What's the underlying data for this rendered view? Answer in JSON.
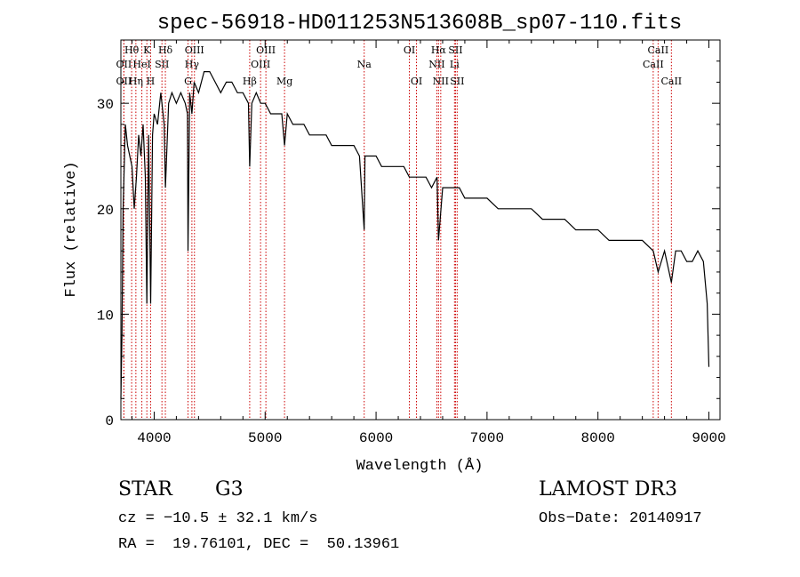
{
  "chart_data": {
    "type": "line",
    "title": "spec-56918-HD011253N513608B_sp07-110.fits",
    "xlabel": "Wavelength (Å)",
    "ylabel": "Flux (relative)",
    "xlim": [
      3700,
      9100
    ],
    "ylim": [
      0,
      36
    ],
    "xticks": [
      4000,
      5000,
      6000,
      7000,
      8000,
      9000
    ],
    "yticks": [
      0,
      10,
      20,
      30
    ],
    "grid": false,
    "series": [
      {
        "name": "flux",
        "x": [
          3700,
          3710,
          3720,
          3740,
          3760,
          3780,
          3800,
          3820,
          3840,
          3860,
          3880,
          3900,
          3920,
          3934,
          3950,
          3968,
          3985,
          4000,
          4030,
          4060,
          4090,
          4101,
          4130,
          4160,
          4200,
          4240,
          4280,
          4300,
          4305,
          4320,
          4340,
          4360,
          4400,
          4450,
          4500,
          4550,
          4600,
          4650,
          4700,
          4750,
          4800,
          4850,
          4861,
          4880,
          4920,
          4960,
          5000,
          5050,
          5100,
          5150,
          5175,
          5200,
          5250,
          5300,
          5350,
          5400,
          5450,
          5500,
          5550,
          5600,
          5650,
          5700,
          5750,
          5800,
          5850,
          5893,
          5900,
          5950,
          6000,
          6050,
          6100,
          6150,
          6200,
          6250,
          6300,
          6350,
          6400,
          6450,
          6500,
          6550,
          6563,
          6600,
          6650,
          6700,
          6750,
          6800,
          6850,
          6900,
          6950,
          7000,
          7100,
          7200,
          7300,
          7400,
          7500,
          7600,
          7700,
          7800,
          7900,
          8000,
          8100,
          8200,
          8300,
          8400,
          8498,
          8542,
          8600,
          8662,
          8700,
          8750,
          8800,
          8850,
          8900,
          8950,
          8985,
          9000
        ],
        "values": [
          2,
          8,
          20,
          28,
          26,
          25,
          24,
          20,
          23,
          27,
          25,
          28,
          23,
          11,
          27,
          11,
          27,
          29,
          28,
          31,
          28,
          22,
          30,
          31,
          30,
          31,
          30,
          29,
          16,
          31,
          29,
          32,
          31,
          33,
          33,
          32,
          31,
          32,
          32,
          31,
          31,
          30,
          24,
          30,
          31,
          30,
          30,
          29,
          29,
          29,
          26,
          29,
          28,
          28,
          28,
          27,
          27,
          27,
          27,
          26,
          26,
          26,
          26,
          26,
          25,
          18,
          25,
          25,
          25,
          24,
          24,
          24,
          24,
          24,
          23,
          23,
          23,
          23,
          22,
          23,
          17,
          22,
          22,
          22,
          22,
          21,
          21,
          21,
          21,
          21,
          20,
          20,
          20,
          20,
          19,
          19,
          19,
          18,
          18,
          18,
          17,
          17,
          17,
          17,
          16,
          14,
          16,
          13,
          16,
          16,
          15,
          15,
          16,
          15,
          11,
          5
        ]
      }
    ],
    "lines": [
      {
        "label": "OII",
        "x": 3727,
        "row": 2,
        "dash": false
      },
      {
        "label": "Hθ",
        "x": 3797,
        "row": 1,
        "dash": false
      },
      {
        "label": "OII",
        "x": 3727,
        "row": 3,
        "dash": false
      },
      {
        "label": "Hη",
        "x": 3835,
        "row": 3,
        "dash": false
      },
      {
        "label": "HeI",
        "x": 3889,
        "row": 2,
        "dash": false
      },
      {
        "label": "K",
        "x": 3934,
        "row": 1,
        "dash": false
      },
      {
        "label": "H",
        "x": 3968,
        "row": 3,
        "dash": false
      },
      {
        "label": "SII",
        "x": 4070,
        "row": 2,
        "dash": false
      },
      {
        "label": "Hδ",
        "x": 4101,
        "row": 1,
        "dash": false
      },
      {
        "label": "G",
        "x": 4305,
        "row": 3,
        "dash": false
      },
      {
        "label": "Hγ",
        "x": 4340,
        "row": 2,
        "dash": false
      },
      {
        "label": "OIII",
        "x": 4363,
        "row": 1,
        "dash": false
      },
      {
        "label": "Hβ",
        "x": 4861,
        "row": 3,
        "dash": false
      },
      {
        "label": "OIII",
        "x": 4959,
        "row": 2,
        "dash": false
      },
      {
        "label": "OIII",
        "x": 5007,
        "row": 1,
        "dash": false
      },
      {
        "label": "Mg",
        "x": 5175,
        "row": 3,
        "dash": false
      },
      {
        "label": "Na",
        "x": 5893,
        "row": 2,
        "dash": false
      },
      {
        "label": "OI",
        "x": 6300,
        "row": 1,
        "dash": false
      },
      {
        "label": "OI",
        "x": 6364,
        "row": 3,
        "dash": false
      },
      {
        "label": "NII",
        "x": 6548,
        "row": 2,
        "dash": false
      },
      {
        "label": "Hα",
        "x": 6563,
        "row": 1,
        "dash": false
      },
      {
        "label": "NII",
        "x": 6583,
        "row": 3,
        "dash": false
      },
      {
        "label": "Li",
        "x": 6707,
        "row": 2,
        "dash": false
      },
      {
        "label": "SII",
        "x": 6716,
        "row": 1,
        "dash": false
      },
      {
        "label": "SII",
        "x": 6731,
        "row": 3,
        "dash": false
      },
      {
        "label": "CaII",
        "x": 8498,
        "row": 2,
        "dash": false
      },
      {
        "label": "CaII",
        "x": 8542,
        "row": 1,
        "dash": false
      },
      {
        "label": "CaII",
        "x": 8662,
        "row": 3,
        "dash": false
      }
    ]
  },
  "info": {
    "class_label": "STAR",
    "subclass": "G3",
    "redshift": "cz = −10.5 ± 32.1 km/s",
    "coords": "RA =  19.76101, DEC =  50.13961",
    "survey": "LAMOST DR3",
    "obs_date": "Obs−Date: 20140917"
  },
  "colors": {
    "axis": "#000000",
    "spectrum": "#000000",
    "line_marker": "#cc0000"
  }
}
